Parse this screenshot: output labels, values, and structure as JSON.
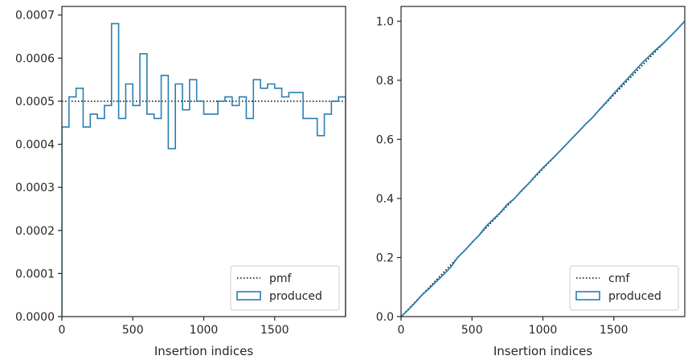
{
  "chart_data": [
    {
      "type": "histogram-step",
      "xlabel": "Insertion indices",
      "ylabel": "",
      "title": "",
      "xlim": [
        0,
        2000
      ],
      "ylim": [
        0,
        0.00072
      ],
      "xticks": [
        0,
        500,
        1000,
        1500
      ],
      "xtick_labels": [
        "0",
        "500",
        "1000",
        "1500"
      ],
      "yticks": [
        0,
        0.0001,
        0.0002,
        0.0003,
        0.0004,
        0.0005,
        0.0006,
        0.0007
      ],
      "ytick_labels": [
        "0.0000",
        "0.0001",
        "0.0002",
        "0.0003",
        "0.0004",
        "0.0005",
        "0.0006",
        "0.0007"
      ],
      "legend_position": "lower-right",
      "legend": [
        {
          "label": "pmf",
          "style": "dotted",
          "color": "#000000"
        },
        {
          "label": "produced",
          "style": "patch",
          "color": "#2a7fb0"
        }
      ],
      "reference_line": {
        "name": "pmf",
        "y": 0.0005
      },
      "bin_edges": [
        0,
        50,
        100,
        150,
        200,
        250,
        300,
        350,
        400,
        450,
        500,
        550,
        600,
        650,
        700,
        750,
        800,
        850,
        900,
        950,
        1000,
        1050,
        1100,
        1150,
        1200,
        1250,
        1300,
        1350,
        1400,
        1450,
        1500,
        1550,
        1600,
        1650,
        1700,
        1750,
        1800,
        1850,
        1900,
        1950,
        2000
      ],
      "values": [
        0.00044,
        0.00051,
        0.00053,
        0.00044,
        0.00047,
        0.00046,
        0.00049,
        0.00068,
        0.00046,
        0.00054,
        0.00049,
        0.00061,
        0.00047,
        0.00046,
        0.00056,
        0.00039,
        0.00054,
        0.00048,
        0.00055,
        0.0005,
        0.00047,
        0.00047,
        0.0005,
        0.00051,
        0.00049,
        0.00051,
        0.00046,
        0.00055,
        0.00053,
        0.00054,
        0.00053,
        0.00051,
        0.00052,
        0.00052,
        0.00046,
        0.00046,
        0.00042,
        0.00047,
        0.0005,
        0.00051
      ]
    },
    {
      "type": "line",
      "xlabel": "Insertion indices",
      "ylabel": "",
      "title": "",
      "xlim": [
        0,
        2000
      ],
      "ylim": [
        0,
        1.05
      ],
      "xticks": [
        0,
        500,
        1000,
        1500
      ],
      "xtick_labels": [
        "0",
        "500",
        "1000",
        "1500"
      ],
      "yticks": [
        0,
        0.2,
        0.4,
        0.6,
        0.8,
        1.0
      ],
      "ytick_labels": [
        "0.0",
        "0.2",
        "0.4",
        "0.6",
        "0.8",
        "1.0"
      ],
      "legend_position": "lower-right",
      "legend": [
        {
          "label": "cmf",
          "style": "dotted",
          "color": "#000000"
        },
        {
          "label": "produced",
          "style": "patch",
          "color": "#2a7fb0"
        }
      ],
      "reference_line": {
        "name": "cmf",
        "x": [
          0,
          2000
        ],
        "y": [
          0,
          1
        ]
      },
      "series": [
        {
          "x": [
            0,
            50,
            100,
            150,
            200,
            250,
            300,
            350,
            400,
            450,
            500,
            550,
            600,
            650,
            700,
            750,
            800,
            850,
            900,
            950,
            1000,
            1050,
            1100,
            1150,
            1200,
            1250,
            1300,
            1350,
            1400,
            1450,
            1500,
            1550,
            1600,
            1650,
            1700,
            1750,
            1800,
            1850,
            1900,
            1950,
            2000
          ],
          "y": [
            0,
            0.022,
            0.0475,
            0.074,
            0.096,
            0.1195,
            0.1425,
            0.167,
            0.201,
            0.224,
            0.251,
            0.2755,
            0.306,
            0.3295,
            0.3525,
            0.3805,
            0.4,
            0.427,
            0.451,
            0.4785,
            0.5035,
            0.527,
            0.5505,
            0.5755,
            0.601,
            0.6255,
            0.651,
            0.674,
            0.7015,
            0.728,
            0.755,
            0.7815,
            0.807,
            0.833,
            0.859,
            0.882,
            0.905,
            0.926,
            0.9495,
            0.9745,
            1.0
          ]
        }
      ]
    }
  ]
}
